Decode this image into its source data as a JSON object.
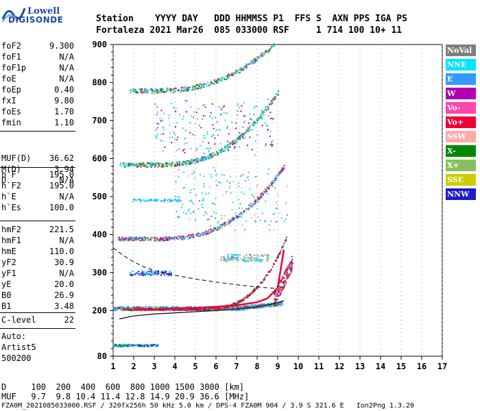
{
  "logo": {
    "line1": "Lowell",
    "line2": "DIGISONDE"
  },
  "header": {
    "row1": "Station    YYYY DAY   DDD HHMMSS P1  FFS S  AXN PPS IGA PS",
    "row2": "Fortaleza 2021 Mar26  085 033000 RSF     1 714 100 10+ 11"
  },
  "params": [
    {
      "name": "foF2",
      "value": "9.300"
    },
    {
      "name": "foF1",
      "value": "N/A"
    },
    {
      "name": "foF1p",
      "value": "N/A"
    },
    {
      "name": "foE",
      "value": "N/A"
    },
    {
      "name": "foEp",
      "value": "0.40"
    },
    {
      "name": "fxI",
      "value": "9.80"
    },
    {
      "name": "foEs",
      "value": "1.70"
    },
    {
      "name": "fmin",
      "value": "1.10"
    },
    {
      "name": "MUF(D)",
      "value": "36.62"
    },
    {
      "name": "M(D)",
      "value": "3.94"
    },
    {
      "name": "D",
      "value": "N/A"
    },
    {
      "name": "h`F",
      "value": "195.0"
    },
    {
      "name": "h`F2",
      "value": "195.0"
    },
    {
      "name": "h`E",
      "value": "N/A"
    },
    {
      "name": "h`Es",
      "value": "100.0"
    },
    {
      "name": "hmF2",
      "value": "221.5"
    },
    {
      "name": "hmF1",
      "value": "N/A"
    },
    {
      "name": "hmE",
      "value": "110.0"
    },
    {
      "name": "yF2",
      "value": "30.9"
    },
    {
      "name": "yF1",
      "value": "N/A"
    },
    {
      "name": "yE",
      "value": "20.0"
    },
    {
      "name": "B0",
      "value": "26.9"
    },
    {
      "name": "B1",
      "value": "3.48"
    },
    {
      "name": "C-level",
      "value": "22"
    }
  ],
  "auto": {
    "l1": "Auto:",
    "l2": "Artist5",
    "l3": "500200"
  },
  "legend": [
    {
      "label": "NoVal",
      "color": "#7f7f7f"
    },
    {
      "label": "NNE",
      "color": "#00e5ff"
    },
    {
      "label": "E",
      "color": "#3399ff"
    },
    {
      "label": "W",
      "color": "#b000b0"
    },
    {
      "label": "Vo-",
      "color": "#ff44aa"
    },
    {
      "label": "Vo+",
      "color": "#ee0033"
    },
    {
      "label": "SSW",
      "color": "#ffaaaa"
    },
    {
      "label": "X-",
      "color": "#008800"
    },
    {
      "label": "X+",
      "color": "#88c060"
    },
    {
      "label": "SSE",
      "color": "#cccc00"
    },
    {
      "label": "NNW",
      "color": "#1a1acc"
    }
  ],
  "chart_data": {
    "type": "scatter",
    "xlim": [
      1,
      17
    ],
    "ylim": [
      80,
      900
    ],
    "xticks": [
      "1",
      "2",
      "3",
      "4",
      "5",
      "6",
      "7",
      "8",
      "9",
      "10",
      "11",
      "12",
      "13",
      "14",
      "15",
      "16",
      "17"
    ],
    "yticks": [
      "900",
      "800",
      "700",
      "600",
      "500",
      "400",
      "300",
      "200",
      "80"
    ],
    "traces": {
      "E_layer_echo": {
        "x_start": 1.0,
        "x_end": 9.2,
        "h_base": 207
      },
      "F_trace_ordinary": {
        "x": [
          2.0,
          3.0,
          4.0,
          5.0,
          6.0,
          7.0,
          8.0,
          8.5,
          9.0,
          9.3
        ],
        "h": [
          202,
          203,
          205,
          207,
          210,
          214,
          222,
          232,
          260,
          360
        ]
      },
      "profile_curve": {
        "x": [
          1.3,
          2.0,
          3.0,
          4.0,
          5.0,
          6.0,
          7.0,
          8.0,
          8.8,
          9.3
        ],
        "h": [
          178,
          186,
          191,
          194,
          197,
          200,
          204,
          210,
          218,
          226
        ]
      },
      "dashed_curve": {
        "x": [
          1.0,
          1.5,
          2.0,
          2.5,
          3.0,
          4.0,
          5.0,
          6.0,
          7.0,
          8.0,
          9.0
        ],
        "h": [
          365,
          345,
          328,
          315,
          305,
          293,
          283,
          275,
          268,
          262,
          258
        ]
      }
    }
  },
  "footer": {
    "d_row": "D     100  200  400  600  800 1000 1500 3000 [km]",
    "muf_row": "MUF   9.7  9.8 10.4 11.4 12.8 14.9 20.9 36.6 [MHz]",
    "file_row": "FZA0M_2021085033000.RSF / 320fx256h 50 kHz 5.0 km / DPS-4 FZA0M 904 / 3.9 S 321.6 E   Ion2Png 1.3.20"
  }
}
